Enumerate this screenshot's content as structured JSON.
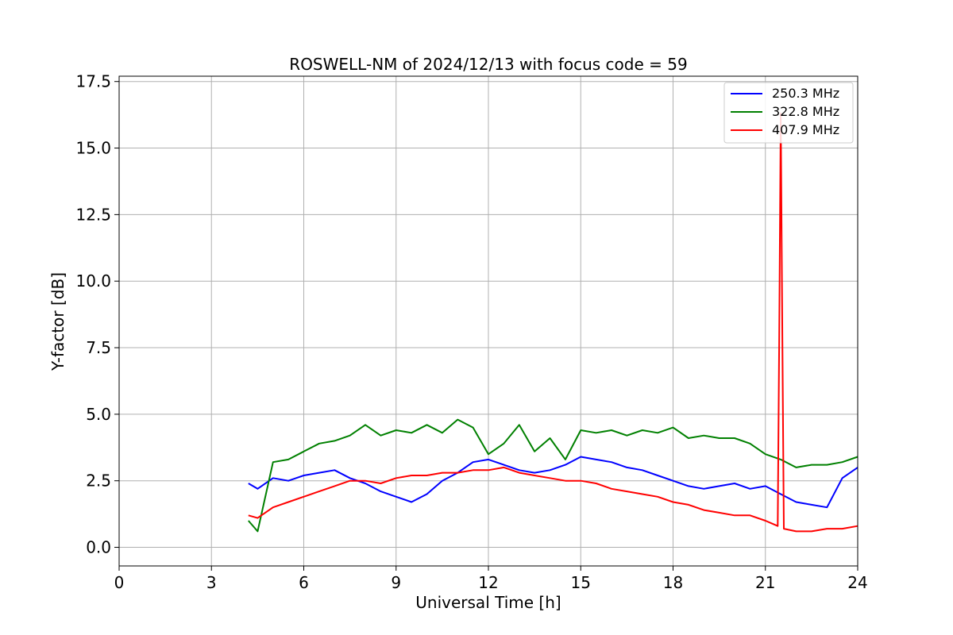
{
  "chart_data": {
    "type": "line",
    "title": "ROSWELL-NM of 2024/12/13 with focus code = 59",
    "xlabel": "Universal Time [h]",
    "ylabel": "Y-factor [dB]",
    "xlim": [
      0,
      24
    ],
    "ylim": [
      -0.7,
      17.7
    ],
    "xticks": [
      "0",
      "3",
      "6",
      "9",
      "12",
      "15",
      "18",
      "21",
      "24"
    ],
    "yticks": [
      "0.0",
      "2.5",
      "5.0",
      "7.5",
      "10.0",
      "12.5",
      "15.0",
      "17.5"
    ],
    "grid": true,
    "legend_position": "top-right",
    "series": [
      {
        "name": "250.3 MHz",
        "color": "#0000ff",
        "x": [
          4.2,
          4.5,
          5.0,
          5.5,
          6.0,
          6.5,
          7.0,
          7.5,
          8.0,
          8.5,
          9.0,
          9.5,
          10.0,
          10.5,
          11.0,
          11.5,
          12.0,
          12.5,
          13.0,
          13.5,
          14.0,
          14.5,
          15.0,
          15.5,
          16.0,
          16.5,
          17.0,
          17.5,
          18.0,
          18.5,
          19.0,
          19.5,
          20.0,
          20.5,
          21.0,
          21.5,
          22.0,
          22.5,
          23.0,
          23.5,
          24.0
        ],
        "y": [
          2.4,
          2.2,
          2.6,
          2.5,
          2.7,
          2.8,
          2.9,
          2.6,
          2.4,
          2.1,
          1.9,
          1.7,
          2.0,
          2.5,
          2.8,
          3.2,
          3.3,
          3.1,
          2.9,
          2.8,
          2.9,
          3.1,
          3.4,
          3.3,
          3.2,
          3.0,
          2.9,
          2.7,
          2.5,
          2.3,
          2.2,
          2.3,
          2.4,
          2.2,
          2.3,
          2.0,
          1.7,
          1.6,
          1.5,
          2.6,
          3.0
        ]
      },
      {
        "name": "322.8 MHz",
        "color": "#008000",
        "x": [
          4.2,
          4.5,
          5.0,
          5.5,
          6.0,
          6.5,
          7.0,
          7.5,
          8.0,
          8.5,
          9.0,
          9.5,
          10.0,
          10.5,
          11.0,
          11.5,
          12.0,
          12.5,
          13.0,
          13.5,
          14.0,
          14.5,
          15.0,
          15.5,
          16.0,
          16.5,
          17.0,
          17.5,
          18.0,
          18.5,
          19.0,
          19.5,
          20.0,
          20.5,
          21.0,
          21.5,
          22.0,
          22.5,
          23.0,
          23.5,
          24.0
        ],
        "y": [
          1.0,
          0.6,
          3.2,
          3.3,
          3.6,
          3.9,
          4.0,
          4.2,
          4.6,
          4.2,
          4.4,
          4.3,
          4.6,
          4.3,
          4.8,
          4.5,
          3.5,
          3.9,
          4.6,
          3.6,
          4.1,
          3.3,
          4.4,
          4.3,
          4.4,
          4.2,
          4.4,
          4.3,
          4.5,
          4.1,
          4.2,
          4.1,
          4.1,
          3.9,
          3.5,
          3.3,
          3.0,
          3.1,
          3.1,
          3.2,
          3.4
        ]
      },
      {
        "name": "407.9 MHz",
        "color": "#ff0000",
        "x": [
          4.2,
          4.5,
          5.0,
          5.5,
          6.0,
          6.5,
          7.0,
          7.5,
          8.0,
          8.5,
          9.0,
          9.5,
          10.0,
          10.5,
          11.0,
          11.5,
          12.0,
          12.5,
          13.0,
          13.5,
          14.0,
          14.5,
          15.0,
          15.5,
          16.0,
          16.5,
          17.0,
          17.5,
          18.0,
          18.5,
          19.0,
          19.5,
          20.0,
          20.5,
          21.0,
          21.2,
          21.4,
          21.45,
          21.5,
          21.55,
          21.6,
          22.0,
          22.5,
          23.0,
          23.5,
          24.0
        ],
        "y": [
          1.2,
          1.1,
          1.5,
          1.7,
          1.9,
          2.1,
          2.3,
          2.5,
          2.5,
          2.4,
          2.6,
          2.7,
          2.7,
          2.8,
          2.8,
          2.9,
          2.9,
          3.0,
          2.8,
          2.7,
          2.6,
          2.5,
          2.5,
          2.4,
          2.2,
          2.1,
          2.0,
          1.9,
          1.7,
          1.6,
          1.4,
          1.3,
          1.2,
          1.2,
          1.0,
          0.9,
          0.8,
          8.0,
          16.3,
          8.0,
          0.7,
          0.6,
          0.6,
          0.7,
          0.7,
          0.8
        ]
      }
    ]
  }
}
